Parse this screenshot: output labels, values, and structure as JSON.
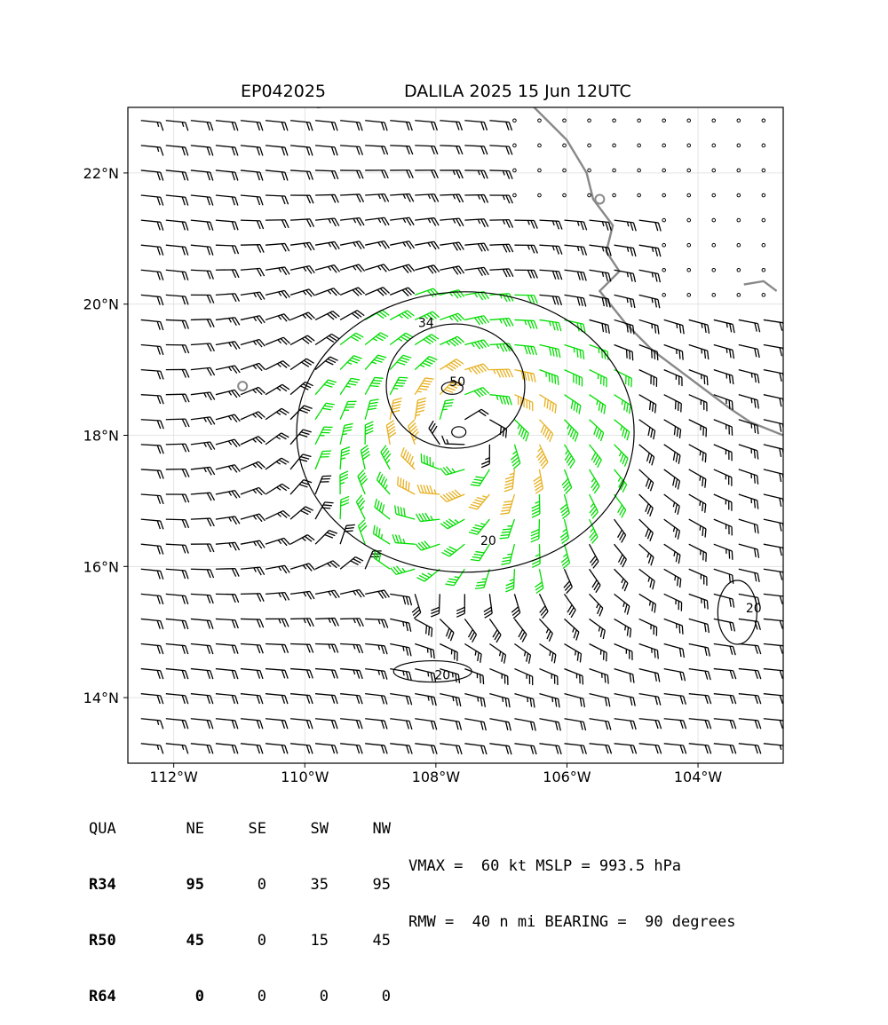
{
  "title": {
    "storm_id": "EP042025",
    "storm_info": "DALILA 2025 15 Jun 12UTC"
  },
  "map": {
    "lon_range": [
      -112.7,
      -102.7
    ],
    "lat_range": [
      13.0,
      23.0
    ],
    "x_ticks": [
      {
        "lon": -112,
        "label": "112°W"
      },
      {
        "lon": -110,
        "label": "110°W"
      },
      {
        "lon": -108,
        "label": "108°W"
      },
      {
        "lon": -106,
        "label": "106°W"
      },
      {
        "lon": -104,
        "label": "104°W"
      }
    ],
    "y_ticks": [
      {
        "lat": 22,
        "label": "22°N"
      },
      {
        "lat": 20,
        "label": "20°N"
      },
      {
        "lat": 18,
        "label": "18°N"
      },
      {
        "lat": 16,
        "label": "16°N"
      },
      {
        "lat": 14,
        "label": "14°N"
      }
    ],
    "center": {
      "lon": -107.5,
      "lat": 18.0
    },
    "contour_labels": [
      {
        "text": "34",
        "lon": -108.15,
        "lat": 19.65
      },
      {
        "text": "50",
        "lon": -107.67,
        "lat": 18.75
      },
      {
        "text": "20",
        "lon": -107.2,
        "lat": 16.33
      },
      {
        "text": "20",
        "lon": -107.9,
        "lat": 14.28
      },
      {
        "text": "20",
        "lon": -103.15,
        "lat": 15.3
      }
    ],
    "barb_colors": {
      "calm": "#000000",
      "weak": "#000000",
      "ts": "#00dd00",
      "strong": "#e6b020",
      "hurricane": "#ff8c00"
    },
    "coastline_color": "#888888"
  },
  "wind_radii": {
    "headers": [
      "QUA",
      "NE",
      "SE",
      "SW",
      "NW"
    ],
    "rows": [
      {
        "label": "R34",
        "values": [
          "95",
          "0",
          "35",
          "95"
        ]
      },
      {
        "label": "R50",
        "values": [
          "45",
          "0",
          "15",
          "45"
        ]
      },
      {
        "label": "R64",
        "values": [
          "0",
          "0",
          "0",
          "0"
        ]
      }
    ]
  },
  "stats": {
    "line1": "VMAX =  60 kt MSLP = 993.5 hPa",
    "line2": "RMW =  40 n mi BEARING =  90 degrees"
  }
}
